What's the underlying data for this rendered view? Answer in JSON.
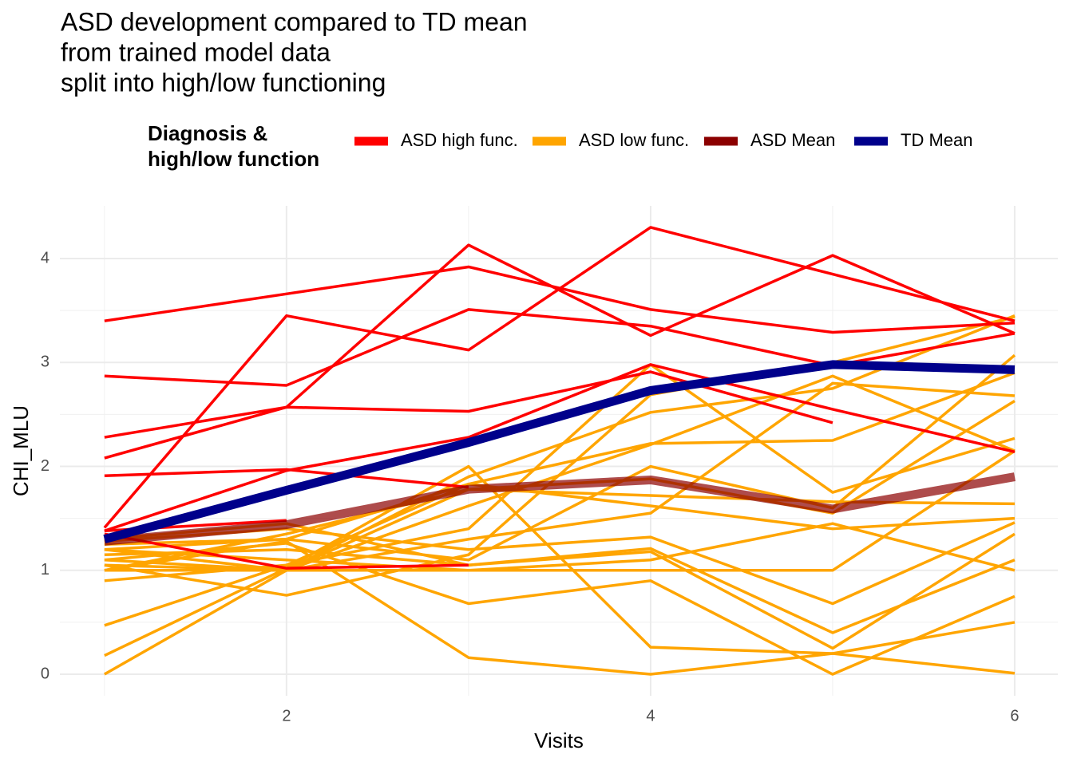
{
  "chart_data": {
    "type": "line",
    "title": [
      "ASD development compared to TD mean",
      "from trained model data",
      "split into high/low functioning"
    ],
    "x_label": "Visits",
    "y_label": "CHI_MLU",
    "legend_title": [
      "Diagnosis &",
      "high/low function"
    ],
    "legend_position": "top",
    "grid": true,
    "x": [
      1,
      2,
      3,
      4,
      5,
      6
    ],
    "xlim": [
      0.755,
      6.237
    ],
    "ylim": [
      -0.207,
      4.507
    ],
    "xticks": [
      2,
      4,
      6
    ],
    "yticks": [
      0,
      1,
      2,
      3,
      4
    ],
    "xminorticks": [
      1,
      3,
      5
    ],
    "yminorticks": [
      0.5,
      1.5,
      2.5,
      3.5
    ],
    "series": [
      {
        "name": "ASD high func.",
        "color": "#ff0000",
        "lines": [
          [
            3.4,
            3.66,
            3.92,
            3.51,
            3.29,
            3.38
          ],
          [
            2.87,
            2.78,
            3.51,
            3.35,
            2.97,
            3.28
          ],
          [
            1.41,
            3.45,
            3.12,
            4.3,
            3.85,
            3.4
          ],
          [
            2.08,
            2.57,
            4.13,
            3.26,
            4.03,
            3.28
          ],
          [
            2.28,
            2.57,
            2.53,
            2.91,
            2.42,
            null
          ],
          [
            1.91,
            1.97,
            1.8,
            null,
            null,
            null
          ],
          [
            1.38,
            1.96,
            2.28,
            2.98,
            2.55,
            2.14
          ],
          [
            1.35,
            1.02,
            1.05,
            null,
            null,
            null
          ],
          [
            1.38,
            1.48,
            null,
            null,
            null,
            null
          ]
        ]
      },
      {
        "name": "ASD low func.",
        "color": "#ffa500",
        "lines": [
          [
            0.0,
            1.0,
            1.62,
            2.21,
            2.87,
            2.15
          ],
          [
            0.18,
            1.02,
            2.0,
            0.26,
            0.2,
            0.5
          ],
          [
            0.47,
            1.05,
            1.4,
            2.98,
            1.75,
            2.27
          ],
          [
            1.0,
            1.28,
            0.16,
            0.0,
            0.2,
            0.01
          ],
          [
            1.2,
            1.0,
            1.9,
            2.52,
            2.75,
            3.45
          ],
          [
            1.05,
            0.76,
            1.15,
            2.69,
            3.0,
            3.44
          ],
          [
            0.9,
            1.05,
            1.83,
            2.22,
            2.25,
            2.9
          ],
          [
            1.1,
            1.26,
            0.68,
            0.9,
            0.0,
            0.75
          ],
          [
            1.25,
            1.3,
            1.1,
            2.0,
            1.6,
            3.07
          ],
          [
            1.0,
            1.0,
            1.0,
            1.0,
            1.0,
            2.15
          ],
          [
            1.15,
            1.2,
            1.05,
            1.18,
            0.25,
            1.35
          ],
          [
            1.3,
            1.45,
            1.05,
            1.21,
            0.4,
            1.1
          ],
          [
            1.1,
            1.0,
            1.78,
            1.72,
            1.66,
            1.64
          ],
          [
            1.2,
            1.3,
            1.83,
            1.62,
            1.4,
            1.5
          ],
          [
            1.0,
            1.35,
            1.78,
            1.88,
            1.55,
            2.63
          ],
          [
            1.2,
            1.1,
            1.0,
            1.1,
            1.45,
            1.0
          ],
          [
            1.28,
            1.4,
            1.2,
            1.32,
            0.68,
            1.46
          ],
          [
            1.05,
            1.0,
            1.3,
            1.55,
            2.8,
            2.68
          ]
        ]
      },
      {
        "name": "ASD Mean",
        "color": "#8b0000",
        "values": [
          1.28,
          1.44,
          1.78,
          1.87,
          1.59,
          1.9
        ]
      },
      {
        "name": "TD Mean",
        "color": "#00008b",
        "values": [
          1.3,
          1.77,
          2.23,
          2.73,
          2.98,
          2.93
        ]
      }
    ]
  }
}
